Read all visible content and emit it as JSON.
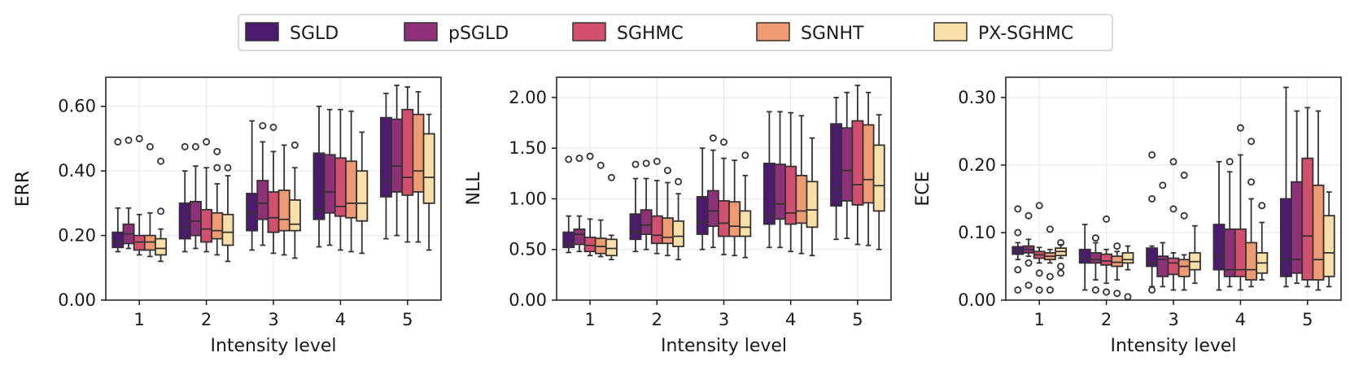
{
  "legend": {
    "entries": [
      {
        "name": "SGLD",
        "color": "#4b1a6e"
      },
      {
        "name": "pSGLD",
        "color": "#8e3179"
      },
      {
        "name": "SGHMC",
        "color": "#d24f6e"
      },
      {
        "name": "SGNHT",
        "color": "#f09a72"
      },
      {
        "name": "PX-SGHMC",
        "color": "#f8dfa8"
      }
    ],
    "location": "top-center"
  },
  "chart_data": [
    {
      "type": "box",
      "xlabel": "Intensity level",
      "ylabel": "ERR",
      "categories": [
        "1",
        "2",
        "3",
        "4",
        "5"
      ],
      "ylim": [
        0,
        0.69
      ],
      "yticks": [
        0.0,
        0.2,
        0.4,
        0.6
      ],
      "ytick_labels": [
        "0.00",
        "0.20",
        "0.40",
        "0.60"
      ],
      "grid": true,
      "series": [
        {
          "name": "SGLD",
          "boxes": [
            {
              "whislo": 0.15,
              "q1": 0.163,
              "med": 0.18,
              "q3": 0.21,
              "whishi": 0.285,
              "fliers": [
                0.49
              ]
            },
            {
              "whislo": 0.15,
              "q1": 0.19,
              "med": 0.225,
              "q3": 0.3,
              "whishi": 0.4,
              "fliers": [
                0.475
              ]
            },
            {
              "whislo": 0.155,
              "q1": 0.215,
              "med": 0.27,
              "q3": 0.33,
              "whishi": 0.555,
              "fliers": []
            },
            {
              "whislo": 0.165,
              "q1": 0.25,
              "med": 0.28,
              "q3": 0.455,
              "whishi": 0.6,
              "fliers": []
            },
            {
              "whislo": 0.19,
              "q1": 0.32,
              "med": 0.37,
              "q3": 0.565,
              "whishi": 0.64,
              "fliers": []
            }
          ]
        },
        {
          "name": "pSGLD",
          "boxes": [
            {
              "whislo": 0.16,
              "q1": 0.175,
              "med": 0.205,
              "q3": 0.235,
              "whishi": 0.285,
              "fliers": [
                0.495
              ]
            },
            {
              "whislo": 0.16,
              "q1": 0.2,
              "med": 0.245,
              "q3": 0.305,
              "whishi": 0.415,
              "fliers": [
                0.475
              ]
            },
            {
              "whislo": 0.17,
              "q1": 0.25,
              "med": 0.3,
              "q3": 0.37,
              "whishi": 0.49,
              "fliers": [
                0.54
              ]
            },
            {
              "whislo": 0.17,
              "q1": 0.27,
              "med": 0.335,
              "q3": 0.45,
              "whishi": 0.59,
              "fliers": []
            },
            {
              "whislo": 0.2,
              "q1": 0.335,
              "med": 0.415,
              "q3": 0.56,
              "whishi": 0.665,
              "fliers": []
            }
          ]
        },
        {
          "name": "SGHMC",
          "boxes": [
            {
              "whislo": 0.14,
              "q1": 0.155,
              "med": 0.18,
              "q3": 0.2,
              "whishi": 0.265,
              "fliers": [
                0.5
              ]
            },
            {
              "whislo": 0.15,
              "q1": 0.18,
              "med": 0.22,
              "q3": 0.28,
              "whishi": 0.41,
              "fliers": [
                0.49
              ]
            },
            {
              "whislo": 0.145,
              "q1": 0.21,
              "med": 0.255,
              "q3": 0.335,
              "whishi": 0.46,
              "fliers": [
                0.535
              ]
            },
            {
              "whislo": 0.155,
              "q1": 0.26,
              "med": 0.29,
              "q3": 0.44,
              "whishi": 0.59,
              "fliers": []
            },
            {
              "whislo": 0.18,
              "q1": 0.325,
              "med": 0.38,
              "q3": 0.59,
              "whishi": 0.66,
              "fliers": []
            }
          ]
        },
        {
          "name": "SGNHT",
          "boxes": [
            {
              "whislo": 0.135,
              "q1": 0.155,
              "med": 0.18,
              "q3": 0.2,
              "whishi": 0.27,
              "fliers": [
                0.475
              ]
            },
            {
              "whislo": 0.14,
              "q1": 0.19,
              "med": 0.215,
              "q3": 0.27,
              "whishi": 0.36,
              "fliers": [
                0.46,
                0.41
              ]
            },
            {
              "whislo": 0.14,
              "q1": 0.215,
              "med": 0.25,
              "q3": 0.34,
              "whishi": 0.48,
              "fliers": []
            },
            {
              "whislo": 0.15,
              "q1": 0.255,
              "med": 0.3,
              "q3": 0.43,
              "whishi": 0.585,
              "fliers": []
            },
            {
              "whislo": 0.18,
              "q1": 0.335,
              "med": 0.4,
              "q3": 0.575,
              "whishi": 0.645,
              "fliers": []
            }
          ]
        },
        {
          "name": "PX-SGHMC",
          "boxes": [
            {
              "whislo": 0.12,
              "q1": 0.14,
              "med": 0.16,
              "q3": 0.19,
              "whishi": 0.22,
              "fliers": [
                0.43,
                0.275
              ]
            },
            {
              "whislo": 0.12,
              "q1": 0.17,
              "med": 0.21,
              "q3": 0.265,
              "whishi": 0.385,
              "fliers": [
                0.41
              ]
            },
            {
              "whislo": 0.13,
              "q1": 0.215,
              "med": 0.235,
              "q3": 0.31,
              "whishi": 0.41,
              "fliers": [
                0.48
              ]
            },
            {
              "whislo": 0.145,
              "q1": 0.245,
              "med": 0.3,
              "q3": 0.4,
              "whishi": 0.52,
              "fliers": []
            },
            {
              "whislo": 0.155,
              "q1": 0.3,
              "med": 0.38,
              "q3": 0.515,
              "whishi": 0.575,
              "fliers": []
            }
          ]
        }
      ]
    },
    {
      "type": "box",
      "xlabel": "Intensity level",
      "ylabel": "NLL",
      "categories": [
        "1",
        "2",
        "3",
        "4",
        "5"
      ],
      "ylim": [
        0,
        2.2
      ],
      "yticks": [
        0.0,
        0.5,
        1.0,
        1.5,
        2.0
      ],
      "ytick_labels": [
        "0.00",
        "0.50",
        "1.00",
        "1.50",
        "2.00"
      ],
      "grid": true,
      "series": [
        {
          "name": "SGLD",
          "boxes": [
            {
              "whislo": 0.47,
              "q1": 0.52,
              "med": 0.56,
              "q3": 0.67,
              "whishi": 0.83,
              "fliers": [
                1.39
              ]
            },
            {
              "whislo": 0.48,
              "q1": 0.6,
              "med": 0.67,
              "q3": 0.85,
              "whishi": 1.2,
              "fliers": [
                1.34
              ]
            },
            {
              "whislo": 0.5,
              "q1": 0.65,
              "med": 0.77,
              "q3": 1.02,
              "whishi": 1.5,
              "fliers": []
            },
            {
              "whislo": 0.52,
              "q1": 0.75,
              "med": 0.83,
              "q3": 1.35,
              "whishi": 1.86,
              "fliers": []
            },
            {
              "whislo": 0.6,
              "q1": 0.93,
              "med": 1.1,
              "q3": 1.74,
              "whishi": 2.0,
              "fliers": []
            }
          ]
        },
        {
          "name": "pSGLD",
          "boxes": [
            {
              "whislo": 0.48,
              "q1": 0.55,
              "med": 0.65,
              "q3": 0.7,
              "whishi": 0.83,
              "fliers": [
                1.4
              ]
            },
            {
              "whislo": 0.5,
              "q1": 0.65,
              "med": 0.74,
              "q3": 0.89,
              "whishi": 1.2,
              "fliers": [
                1.35
              ]
            },
            {
              "whislo": 0.52,
              "q1": 0.73,
              "med": 0.88,
              "q3": 1.08,
              "whishi": 1.48,
              "fliers": [
                1.6
              ]
            },
            {
              "whislo": 0.52,
              "q1": 0.8,
              "med": 0.95,
              "q3": 1.34,
              "whishi": 1.86,
              "fliers": []
            },
            {
              "whislo": 0.61,
              "q1": 0.98,
              "med": 1.28,
              "q3": 1.7,
              "whishi": 2.05,
              "fliers": []
            }
          ]
        },
        {
          "name": "SGHMC",
          "boxes": [
            {
              "whislo": 0.44,
              "q1": 0.48,
              "med": 0.54,
              "q3": 0.62,
              "whishi": 0.8,
              "fliers": [
                1.42
              ]
            },
            {
              "whislo": 0.46,
              "q1": 0.56,
              "med": 0.64,
              "q3": 0.83,
              "whishi": 1.18,
              "fliers": [
                1.37
              ]
            },
            {
              "whislo": 0.45,
              "q1": 0.63,
              "med": 0.76,
              "q3": 0.98,
              "whishi": 1.4,
              "fliers": [
                1.56
              ]
            },
            {
              "whislo": 0.48,
              "q1": 0.75,
              "med": 0.86,
              "q3": 1.32,
              "whishi": 1.85,
              "fliers": []
            },
            {
              "whislo": 0.55,
              "q1": 0.94,
              "med": 1.14,
              "q3": 1.77,
              "whishi": 2.12,
              "fliers": []
            }
          ]
        },
        {
          "name": "SGNHT",
          "boxes": [
            {
              "whislo": 0.43,
              "q1": 0.46,
              "med": 0.53,
              "q3": 0.61,
              "whishi": 0.79,
              "fliers": [
                1.33
              ]
            },
            {
              "whislo": 0.44,
              "q1": 0.56,
              "med": 0.62,
              "q3": 0.81,
              "whishi": 1.16,
              "fliers": [
                1.28
              ]
            },
            {
              "whislo": 0.44,
              "q1": 0.63,
              "med": 0.73,
              "q3": 0.97,
              "whishi": 1.38,
              "fliers": []
            },
            {
              "whislo": 0.46,
              "q1": 0.76,
              "med": 0.88,
              "q3": 1.23,
              "whishi": 1.82,
              "fliers": []
            },
            {
              "whislo": 0.54,
              "q1": 0.96,
              "med": 1.19,
              "q3": 1.73,
              "whishi": 2.05,
              "fliers": []
            }
          ]
        },
        {
          "name": "PX-SGHMC",
          "boxes": [
            {
              "whislo": 0.4,
              "q1": 0.44,
              "med": 0.51,
              "q3": 0.6,
              "whishi": 0.64,
              "fliers": [
                1.21
              ]
            },
            {
              "whislo": 0.4,
              "q1": 0.53,
              "med": 0.63,
              "q3": 0.78,
              "whishi": 1.05,
              "fliers": [
                1.17
              ]
            },
            {
              "whislo": 0.42,
              "q1": 0.63,
              "med": 0.72,
              "q3": 0.88,
              "whishi": 1.23,
              "fliers": [
                1.43
              ]
            },
            {
              "whislo": 0.44,
              "q1": 0.72,
              "med": 0.89,
              "q3": 1.17,
              "whishi": 1.6,
              "fliers": []
            },
            {
              "whislo": 0.5,
              "q1": 0.88,
              "med": 1.13,
              "q3": 1.53,
              "whishi": 1.83,
              "fliers": []
            }
          ]
        }
      ]
    },
    {
      "type": "box",
      "xlabel": "Intensity level",
      "ylabel": "ECE",
      "categories": [
        "1",
        "2",
        "3",
        "4",
        "5"
      ],
      "ylim": [
        0,
        0.33
      ],
      "yticks": [
        0.0,
        0.1,
        0.2,
        0.3
      ],
      "ytick_labels": [
        "0.00",
        "0.10",
        "0.20",
        "0.30"
      ],
      "grid": true,
      "series": [
        {
          "name": "SGLD",
          "boxes": [
            {
              "whislo": 0.06,
              "q1": 0.068,
              "med": 0.073,
              "q3": 0.079,
              "whishi": 0.085,
              "fliers": [
                0.135,
                0.1,
                0.045,
                0.015
              ]
            },
            {
              "whislo": 0.015,
              "q1": 0.055,
              "med": 0.062,
              "q3": 0.075,
              "whishi": 0.112,
              "fliers": []
            },
            {
              "whislo": 0.02,
              "q1": 0.05,
              "med": 0.055,
              "q3": 0.077,
              "whishi": 0.08,
              "fliers": [
                0.215,
                0.15,
                0.015
              ]
            },
            {
              "whislo": 0.015,
              "q1": 0.045,
              "med": 0.065,
              "q3": 0.112,
              "whishi": 0.205,
              "fliers": []
            },
            {
              "whislo": 0.02,
              "q1": 0.035,
              "med": 0.06,
              "q3": 0.15,
              "whishi": 0.315,
              "fliers": []
            }
          ]
        },
        {
          "name": "pSGLD",
          "boxes": [
            {
              "whislo": 0.065,
              "q1": 0.07,
              "med": 0.075,
              "q3": 0.08,
              "whishi": 0.09,
              "fliers": [
                0.125,
                0.055,
                0.022
              ]
            },
            {
              "whislo": 0.03,
              "q1": 0.055,
              "med": 0.06,
              "q3": 0.07,
              "whishi": 0.085,
              "fliers": [
                0.092,
                0.015
              ]
            },
            {
              "whislo": 0.02,
              "q1": 0.035,
              "med": 0.06,
              "q3": 0.065,
              "whishi": 0.085,
              "fliers": [
                0.17
              ]
            },
            {
              "whislo": 0.02,
              "q1": 0.035,
              "med": 0.045,
              "q3": 0.105,
              "whishi": 0.19,
              "fliers": [
                0.205
              ]
            },
            {
              "whislo": 0.025,
              "q1": 0.04,
              "med": 0.06,
              "q3": 0.175,
              "whishi": 0.28,
              "fliers": []
            }
          ]
        },
        {
          "name": "SGHMC",
          "boxes": [
            {
              "whislo": 0.055,
              "q1": 0.062,
              "med": 0.067,
              "q3": 0.072,
              "whishi": 0.078,
              "fliers": [
                0.14,
                0.04,
                0.015
              ]
            },
            {
              "whislo": 0.025,
              "q1": 0.052,
              "med": 0.058,
              "q3": 0.068,
              "whishi": 0.075,
              "fliers": [
                0.12,
                0.012
              ]
            },
            {
              "whislo": 0.015,
              "q1": 0.038,
              "med": 0.055,
              "q3": 0.062,
              "whishi": 0.07,
              "fliers": [
                0.205,
                0.135
              ]
            },
            {
              "whislo": 0.015,
              "q1": 0.035,
              "med": 0.045,
              "q3": 0.105,
              "whishi": 0.215,
              "fliers": [
                0.255
              ]
            },
            {
              "whislo": 0.02,
              "q1": 0.03,
              "med": 0.095,
              "q3": 0.21,
              "whishi": 0.285,
              "fliers": []
            }
          ]
        },
        {
          "name": "SGNHT",
          "boxes": [
            {
              "whislo": 0.055,
              "q1": 0.06,
              "med": 0.065,
              "q3": 0.07,
              "whishi": 0.075,
              "fliers": [
                0.105,
                0.035,
                0.015
              ]
            },
            {
              "whislo": 0.03,
              "q1": 0.05,
              "med": 0.056,
              "q3": 0.065,
              "whishi": 0.072,
              "fliers": [
                0.08,
                0.01
              ]
            },
            {
              "whislo": 0.015,
              "q1": 0.035,
              "med": 0.05,
              "q3": 0.06,
              "whishi": 0.067,
              "fliers": [
                0.125,
                0.185
              ]
            },
            {
              "whislo": 0.02,
              "q1": 0.03,
              "med": 0.045,
              "q3": 0.085,
              "whishi": 0.15,
              "fliers": [
                0.235,
                0.175
              ]
            },
            {
              "whislo": 0.015,
              "q1": 0.03,
              "med": 0.06,
              "q3": 0.17,
              "whishi": 0.28,
              "fliers": []
            }
          ]
        },
        {
          "name": "PX-SGHMC",
          "boxes": [
            {
              "whislo": 0.062,
              "q1": 0.066,
              "med": 0.072,
              "q3": 0.077,
              "whishi": 0.082,
              "fliers": [
                0.085,
                0.05,
                0.04
              ]
            },
            {
              "whislo": 0.045,
              "q1": 0.055,
              "med": 0.06,
              "q3": 0.07,
              "whishi": 0.08,
              "fliers": [
                0.005
              ]
            },
            {
              "whislo": 0.025,
              "q1": 0.045,
              "med": 0.057,
              "q3": 0.07,
              "whishi": 0.11,
              "fliers": []
            },
            {
              "whislo": 0.03,
              "q1": 0.04,
              "med": 0.055,
              "q3": 0.07,
              "whishi": 0.115,
              "fliers": [
                0.14
              ]
            },
            {
              "whislo": 0.02,
              "q1": 0.035,
              "med": 0.07,
              "q3": 0.125,
              "whishi": 0.16,
              "fliers": []
            }
          ]
        }
      ]
    }
  ]
}
